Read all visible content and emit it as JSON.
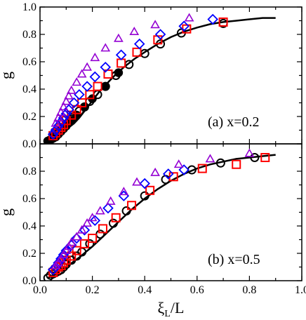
{
  "chart_data": [
    {
      "type": "scatter",
      "annotation": "(a)  x=0.2",
      "ylabel": "g",
      "xlim": [
        0,
        1.0
      ],
      "ylim": [
        0,
        1.0
      ],
      "yticks": [
        "0.0",
        "0.2",
        "0.4",
        "0.6",
        "0.8",
        "1.0"
      ],
      "series": [
        {
          "kind": "line",
          "color": "#000000",
          "x": [
            0.03,
            0.05,
            0.07,
            0.09,
            0.11,
            0.13,
            0.15,
            0.17,
            0.19,
            0.21,
            0.23,
            0.25,
            0.28,
            0.32,
            0.36,
            0.4,
            0.45,
            0.5,
            0.55,
            0.6,
            0.65,
            0.7,
            0.75,
            0.8,
            0.85,
            0.9
          ],
          "y": [
            0.02,
            0.04,
            0.06,
            0.09,
            0.12,
            0.15,
            0.19,
            0.24,
            0.29,
            0.34,
            0.39,
            0.43,
            0.49,
            0.56,
            0.62,
            0.67,
            0.73,
            0.78,
            0.82,
            0.85,
            0.875,
            0.89,
            0.9,
            0.91,
            0.92,
            0.92
          ]
        },
        {
          "marker": "circle-filled",
          "color": "#000000",
          "x": [
            0.03,
            0.04,
            0.05,
            0.06,
            0.07,
            0.08,
            0.09,
            0.1,
            0.12,
            0.14,
            0.17,
            0.2,
            0.25,
            0.3
          ],
          "y": [
            0.02,
            0.03,
            0.04,
            0.05,
            0.07,
            0.09,
            0.11,
            0.13,
            0.17,
            0.21,
            0.27,
            0.33,
            0.42,
            0.52
          ]
        },
        {
          "marker": "circle-open",
          "color": "#000000",
          "x": [
            0.03,
            0.04,
            0.05,
            0.06,
            0.07,
            0.08,
            0.09,
            0.1,
            0.11,
            0.12,
            0.13,
            0.15,
            0.17,
            0.19,
            0.22,
            0.25,
            0.29,
            0.34,
            0.4,
            0.46,
            0.54,
            0.7
          ],
          "y": [
            0.02,
            0.03,
            0.05,
            0.06,
            0.08,
            0.1,
            0.12,
            0.14,
            0.16,
            0.18,
            0.2,
            0.24,
            0.27,
            0.31,
            0.36,
            0.42,
            0.5,
            0.58,
            0.66,
            0.73,
            0.81,
            0.88
          ]
        },
        {
          "marker": "square",
          "color": "#ff0000",
          "x": [
            0.05,
            0.06,
            0.07,
            0.08,
            0.09,
            0.1,
            0.12,
            0.14,
            0.16,
            0.19,
            0.22,
            0.26,
            0.31,
            0.37,
            0.45,
            0.56,
            0.7
          ],
          "y": [
            0.06,
            0.08,
            0.1,
            0.12,
            0.14,
            0.17,
            0.21,
            0.25,
            0.3,
            0.36,
            0.42,
            0.51,
            0.59,
            0.67,
            0.76,
            0.84,
            0.89
          ]
        },
        {
          "marker": "diamond",
          "color": "#0000ff",
          "x": [
            0.05,
            0.06,
            0.07,
            0.08,
            0.09,
            0.1,
            0.11,
            0.13,
            0.15,
            0.18,
            0.21,
            0.25,
            0.31,
            0.38,
            0.46,
            0.55,
            0.66
          ],
          "y": [
            0.07,
            0.1,
            0.13,
            0.16,
            0.19,
            0.22,
            0.25,
            0.3,
            0.36,
            0.42,
            0.49,
            0.56,
            0.65,
            0.73,
            0.8,
            0.86,
            0.91
          ]
        },
        {
          "marker": "triangle",
          "color": "#9400d3",
          "x": [
            0.06,
            0.07,
            0.08,
            0.09,
            0.1,
            0.11,
            0.12,
            0.14,
            0.16,
            0.18,
            0.21,
            0.25,
            0.3,
            0.36,
            0.44,
            0.57
          ],
          "y": [
            0.15,
            0.19,
            0.23,
            0.27,
            0.31,
            0.35,
            0.39,
            0.45,
            0.51,
            0.56,
            0.63,
            0.7,
            0.77,
            0.82,
            0.87,
            0.92
          ]
        }
      ]
    },
    {
      "type": "scatter",
      "annotation": "(b)  x=0.5",
      "ylabel": "g",
      "xlabel_main": "ξ",
      "xlabel_sub": "L",
      "xlabel_tail": "/L",
      "xlim": [
        0,
        1.0
      ],
      "ylim": [
        0,
        1.0
      ],
      "xticks": [
        "0.0",
        "0.2",
        "0.4",
        "0.6",
        "0.8",
        "1.0"
      ],
      "yticks": [
        "0.0",
        "0.2",
        "0.4",
        "0.6",
        "0.8"
      ],
      "series": [
        {
          "kind": "line",
          "color": "#000000",
          "x": [
            0.03,
            0.06,
            0.1,
            0.15,
            0.2,
            0.25,
            0.3,
            0.35,
            0.4,
            0.45,
            0.5,
            0.55,
            0.6,
            0.65,
            0.7,
            0.75,
            0.8,
            0.85,
            0.9
          ],
          "y": [
            0.02,
            0.05,
            0.1,
            0.17,
            0.25,
            0.34,
            0.43,
            0.52,
            0.6,
            0.67,
            0.73,
            0.78,
            0.82,
            0.85,
            0.87,
            0.89,
            0.9,
            0.91,
            0.92
          ]
        },
        {
          "marker": "circle-open",
          "color": "#000000",
          "x": [
            0.03,
            0.04,
            0.05,
            0.06,
            0.07,
            0.08,
            0.09,
            0.1,
            0.12,
            0.14,
            0.16,
            0.19,
            0.23,
            0.28,
            0.33,
            0.4,
            0.48,
            0.58,
            0.69,
            0.82
          ],
          "y": [
            0.02,
            0.04,
            0.05,
            0.06,
            0.07,
            0.08,
            0.1,
            0.12,
            0.15,
            0.18,
            0.21,
            0.27,
            0.34,
            0.42,
            0.51,
            0.62,
            0.74,
            0.81,
            0.86,
            0.9
          ]
        },
        {
          "marker": "square",
          "color": "#ff0000",
          "x": [
            0.05,
            0.06,
            0.07,
            0.08,
            0.09,
            0.1,
            0.12,
            0.14,
            0.17,
            0.2,
            0.24,
            0.29,
            0.35,
            0.42,
            0.51,
            0.62,
            0.75,
            0.86
          ],
          "y": [
            0.06,
            0.08,
            0.1,
            0.11,
            0.13,
            0.15,
            0.18,
            0.22,
            0.27,
            0.31,
            0.38,
            0.46,
            0.55,
            0.66,
            0.76,
            0.82,
            0.85,
            0.9
          ]
        },
        {
          "marker": "diamond",
          "color": "#0000ff",
          "x": [
            0.05,
            0.06,
            0.07,
            0.08,
            0.09,
            0.1,
            0.12,
            0.14,
            0.17,
            0.21,
            0.26,
            0.32,
            0.4,
            0.49,
            0.55
          ],
          "y": [
            0.08,
            0.1,
            0.13,
            0.16,
            0.19,
            0.22,
            0.26,
            0.31,
            0.37,
            0.44,
            0.53,
            0.62,
            0.71,
            0.78,
            0.81
          ]
        },
        {
          "marker": "triangle",
          "color": "#9400d3",
          "x": [
            0.06,
            0.07,
            0.08,
            0.09,
            0.1,
            0.11,
            0.12,
            0.14,
            0.16,
            0.18,
            0.2,
            0.23,
            0.27,
            0.32,
            0.37,
            0.44,
            0.53,
            0.65,
            0.8
          ],
          "y": [
            0.11,
            0.13,
            0.16,
            0.19,
            0.22,
            0.25,
            0.28,
            0.32,
            0.37,
            0.42,
            0.46,
            0.51,
            0.58,
            0.65,
            0.72,
            0.79,
            0.85,
            0.89,
            0.93
          ]
        }
      ]
    }
  ]
}
